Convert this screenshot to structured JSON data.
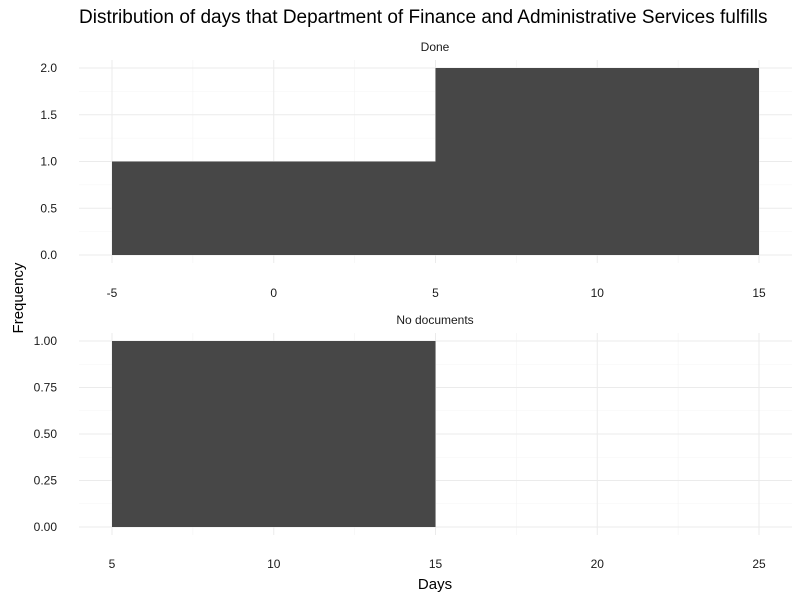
{
  "chart_data": {
    "type": "bar",
    "title": "Distribution of days that Department of Finance and Administrative Services fulfills",
    "xlabel": "Days",
    "ylabel": "Frequency",
    "grid": true,
    "panels": [
      {
        "label": "Done",
        "x_ticks": [
          -5,
          0,
          5,
          10,
          15
        ],
        "x_tick_labels": [
          "-5",
          "0",
          "5",
          "10",
          "15"
        ],
        "y_ticks": [
          0,
          0.5,
          1,
          1.5,
          2
        ],
        "y_tick_labels": [
          "0.0",
          "0.5",
          "1.0",
          "1.5",
          "2.0"
        ],
        "xlim": [
          -5,
          15
        ],
        "ylim": [
          0,
          2
        ],
        "bins": [
          {
            "start": -5,
            "end": 5,
            "count": 1
          },
          {
            "start": 5,
            "end": 15,
            "count": 2
          }
        ]
      },
      {
        "label": "No documents",
        "x_ticks": [
          5,
          10,
          15,
          20,
          25
        ],
        "x_tick_labels": [
          "5",
          "10",
          "15",
          "20",
          "25"
        ],
        "y_ticks": [
          0,
          0.25,
          0.5,
          0.75,
          1
        ],
        "y_tick_labels": [
          "0.00",
          "0.25",
          "0.50",
          "0.75",
          "1.00"
        ],
        "xlim": [
          5,
          25
        ],
        "ylim": [
          0,
          1
        ],
        "bins": [
          {
            "start": 5,
            "end": 15,
            "count": 1
          }
        ]
      }
    ]
  },
  "colors": {
    "bar": "#474747",
    "grid_major": "#ebebeb",
    "background": "#ffffff"
  }
}
